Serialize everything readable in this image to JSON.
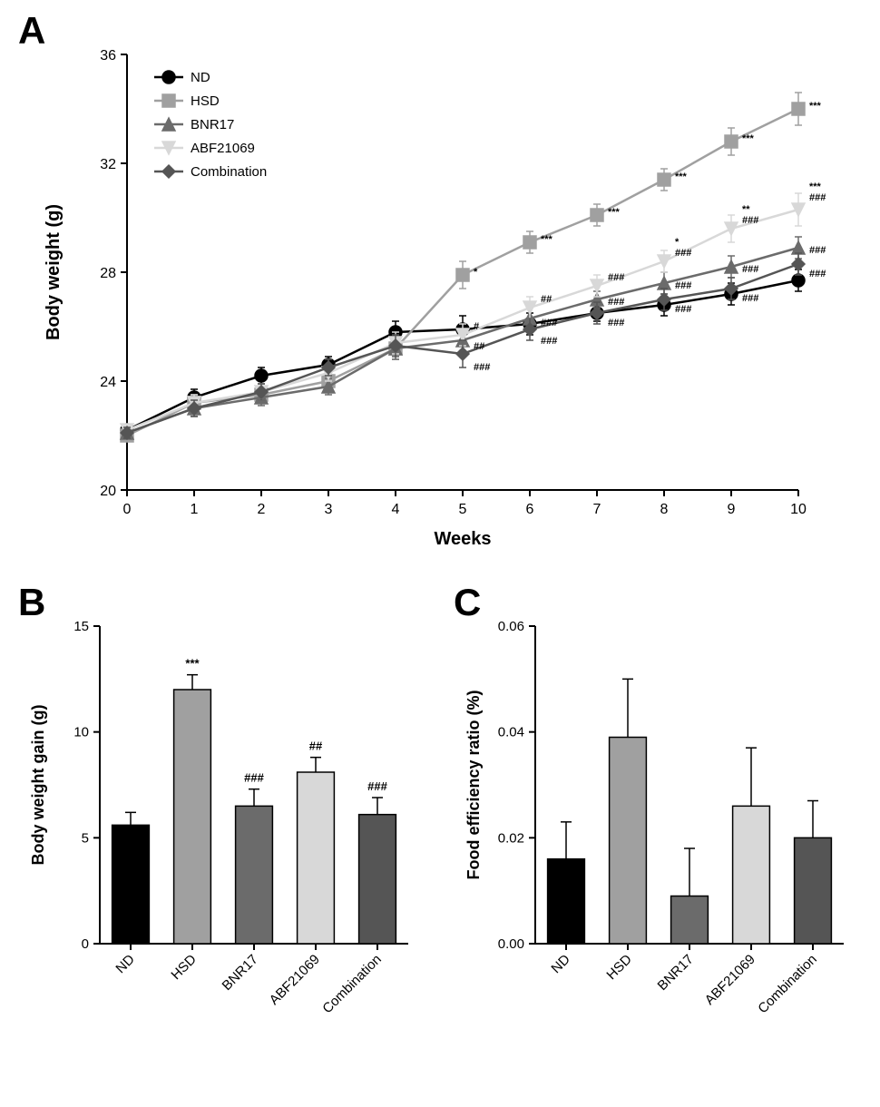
{
  "panelA": {
    "label": "A",
    "type": "line",
    "xlabel": "Weeks",
    "ylabel": "Body weight (g)",
    "xlim": [
      0,
      10
    ],
    "ylim": [
      20,
      36
    ],
    "xticks": [
      0,
      1,
      2,
      3,
      4,
      5,
      6,
      7,
      8,
      9,
      10
    ],
    "yticks": [
      20,
      24,
      28,
      32,
      36
    ],
    "axis_fontsize": 20,
    "tick_fontsize": 16,
    "legend_fontsize": 15,
    "axis_color": "#000000",
    "line_width": 2.5,
    "marker_size": 7,
    "error_cap": 4,
    "background": "#ffffff",
    "series": [
      {
        "name": "ND",
        "color": "#000000",
        "marker": "circle",
        "y": [
          22.2,
          23.4,
          24.2,
          24.6,
          25.8,
          25.9,
          26.1,
          26.5,
          26.8,
          27.2,
          27.7
        ],
        "err": [
          0.2,
          0.3,
          0.3,
          0.3,
          0.4,
          0.5,
          0.4,
          0.3,
          0.4,
          0.4,
          0.4
        ]
      },
      {
        "name": "HSD",
        "color": "#a0a0a0",
        "marker": "square",
        "y": [
          22.0,
          23.2,
          23.5,
          24.0,
          25.2,
          27.9,
          29.1,
          30.1,
          31.4,
          32.8,
          34.0
        ],
        "err": [
          0.2,
          0.3,
          0.3,
          0.3,
          0.4,
          0.5,
          0.4,
          0.4,
          0.4,
          0.5,
          0.6
        ]
      },
      {
        "name": "BNR17",
        "color": "#6b6b6b",
        "marker": "triangle-up",
        "y": [
          22.1,
          23.0,
          23.4,
          23.8,
          25.2,
          25.5,
          26.3,
          27.0,
          27.6,
          28.2,
          28.9
        ],
        "err": [
          0.2,
          0.3,
          0.3,
          0.3,
          0.4,
          0.4,
          0.4,
          0.3,
          0.4,
          0.4,
          0.4
        ]
      },
      {
        "name": "ABF21069",
        "color": "#d8d8d8",
        "marker": "triangle-down",
        "y": [
          22.2,
          23.2,
          23.6,
          24.3,
          25.4,
          25.7,
          26.7,
          27.5,
          28.4,
          29.6,
          30.3
        ],
        "err": [
          0.2,
          0.3,
          0.3,
          0.3,
          0.4,
          0.4,
          0.4,
          0.4,
          0.4,
          0.5,
          0.6
        ]
      },
      {
        "name": "Combination",
        "color": "#555555",
        "marker": "diamond",
        "y": [
          22.1,
          23.0,
          23.6,
          24.5,
          25.3,
          25.0,
          25.9,
          26.5,
          27.0,
          27.4,
          28.3
        ],
        "err": [
          0.2,
          0.3,
          0.3,
          0.3,
          0.4,
          0.5,
          0.4,
          0.4,
          0.4,
          0.4,
          0.4
        ]
      }
    ],
    "sig_annotations": [
      {
        "x": 5,
        "series": "HSD",
        "text": "*"
      },
      {
        "x": 6,
        "series": "HSD",
        "text": "***"
      },
      {
        "x": 7,
        "series": "HSD",
        "text": "***"
      },
      {
        "x": 8,
        "series": "HSD",
        "text": "***"
      },
      {
        "x": 9,
        "series": "HSD",
        "text": "***"
      },
      {
        "x": 10,
        "series": "HSD",
        "text": "***"
      },
      {
        "x": 5,
        "series": "BNR17",
        "text": "##",
        "dy": 10
      },
      {
        "x": 5,
        "series": "ABF21069",
        "text": "#",
        "dy": -6
      },
      {
        "x": 5,
        "series": "Combination",
        "text": "###",
        "dy": 18
      },
      {
        "x": 6,
        "series": "BNR17",
        "text": "###",
        "dy": 8
      },
      {
        "x": 6,
        "series": "ABF21069",
        "text": "##",
        "dy": -6
      },
      {
        "x": 6,
        "series": "Combination",
        "text": "###",
        "dy": 16
      },
      {
        "x": 7,
        "series": "BNR17",
        "text": "###",
        "dy": 6
      },
      {
        "x": 7,
        "series": "ABF21069",
        "text": "###",
        "dy": -6
      },
      {
        "x": 7,
        "series": "Combination",
        "text": "###",
        "dy": 14
      },
      {
        "x": 8,
        "series": "BNR17",
        "text": "###",
        "dy": 6
      },
      {
        "x": 8,
        "series": "ABF21069",
        "text": "###",
        "dy": -6
      },
      {
        "x": 8,
        "series": "Combination",
        "text": "###",
        "dy": 14
      },
      {
        "x": 8,
        "series": "ABF21069",
        "text": "*",
        "dy": -18
      },
      {
        "x": 9,
        "series": "BNR17",
        "text": "###",
        "dy": 6
      },
      {
        "x": 9,
        "series": "ABF21069",
        "text": "###",
        "dy": -6
      },
      {
        "x": 9,
        "series": "ABF21069",
        "text": "**",
        "dy": -18
      },
      {
        "x": 9,
        "series": "Combination",
        "text": "###",
        "dy": 14
      },
      {
        "x": 10,
        "series": "BNR17",
        "text": "###",
        "dy": 6
      },
      {
        "x": 10,
        "series": "ABF21069",
        "text": "###",
        "dy": -10
      },
      {
        "x": 10,
        "series": "ABF21069",
        "text": "***",
        "dy": -22
      },
      {
        "x": 10,
        "series": "Combination",
        "text": "###",
        "dy": 14
      }
    ]
  },
  "panelB": {
    "label": "B",
    "type": "bar",
    "ylabel": "Body weight gain (g)",
    "ylim": [
      0,
      15
    ],
    "yticks": [
      0,
      5,
      10,
      15
    ],
    "axis_fontsize": 18,
    "tick_fontsize": 15,
    "bar_width": 0.6,
    "bar_border": "#000000",
    "bar_border_width": 1.5,
    "categories": [
      "ND",
      "HSD",
      "BNR17",
      "ABF21069",
      "Combination"
    ],
    "colors": [
      "#000000",
      "#a0a0a0",
      "#6b6b6b",
      "#d8d8d8",
      "#555555"
    ],
    "values": [
      5.6,
      12.0,
      6.5,
      8.1,
      6.1
    ],
    "errors": [
      0.6,
      0.7,
      0.8,
      0.7,
      0.8
    ],
    "annotations": [
      "",
      "***",
      "###",
      "##",
      "###"
    ]
  },
  "panelC": {
    "label": "C",
    "type": "bar",
    "ylabel": "Food efficiency ratio (%)",
    "ylim": [
      0,
      0.06
    ],
    "yticks": [
      0.0,
      0.02,
      0.04,
      0.06
    ],
    "ytick_labels": [
      "0.00",
      "0.02",
      "0.04",
      "0.06"
    ],
    "axis_fontsize": 18,
    "tick_fontsize": 15,
    "bar_width": 0.6,
    "bar_border": "#000000",
    "bar_border_width": 1.5,
    "categories": [
      "ND",
      "HSD",
      "BNR17",
      "ABF21069",
      "Combination"
    ],
    "colors": [
      "#000000",
      "#a0a0a0",
      "#6b6b6b",
      "#d8d8d8",
      "#555555"
    ],
    "values": [
      0.016,
      0.039,
      0.009,
      0.026,
      0.02
    ],
    "errors": [
      0.007,
      0.011,
      0.009,
      0.011,
      0.007
    ],
    "annotations": [
      "",
      "",
      "",
      "",
      ""
    ]
  }
}
